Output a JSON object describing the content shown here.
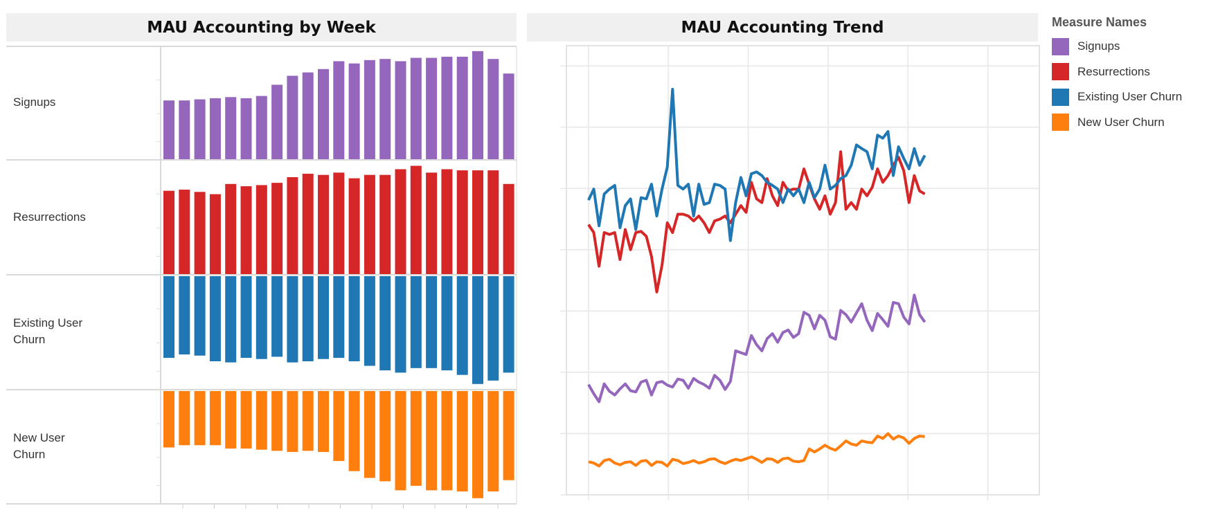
{
  "chart_data": [
    {
      "type": "bar",
      "title": "MAU Accounting by Week",
      "xlabel": "",
      "ylabel": "",
      "layout": "small multiples, one row per measure",
      "grid": false,
      "x_count": 23,
      "rows": [
        {
          "name": "Signups",
          "color": "#9467bd",
          "ylim": [
            0,
            100
          ],
          "values": [
            53,
            53,
            54,
            55,
            56,
            55,
            57,
            67,
            75,
            78,
            81,
            88,
            86,
            89,
            90,
            88,
            91,
            91,
            92,
            92,
            97,
            90,
            77
          ]
        },
        {
          "name": "Resurrections",
          "color": "#d62728",
          "ylim": [
            0,
            100
          ],
          "values": [
            74,
            75,
            73,
            71,
            80,
            78,
            79,
            81,
            86,
            89,
            88,
            90,
            85,
            88,
            88,
            93,
            96,
            90,
            93,
            92,
            92,
            92,
            80
          ]
        },
        {
          "name": "Existing User Churn",
          "label_lines": [
            "Existing User",
            "Churn"
          ],
          "color": "#1f77b4",
          "ylim": [
            -100,
            0
          ],
          "values": [
            -72,
            -69,
            -70,
            -75,
            -76,
            -72,
            -73,
            -71,
            -76,
            -75,
            -73,
            -72,
            -75,
            -79,
            -83,
            -85,
            -81,
            -81,
            -83,
            -87,
            -95,
            -92,
            -85
          ]
        },
        {
          "name": "New User Churn",
          "label_lines": [
            "New User",
            "Churn"
          ],
          "color": "#ff7f0e",
          "ylim": [
            -100,
            0
          ],
          "values": [
            -50,
            -48,
            -48,
            -48,
            -51,
            -51,
            -52,
            -53,
            -54,
            -53,
            -54,
            -62,
            -71,
            -77,
            -80,
            -88,
            -84,
            -88,
            -88,
            -89,
            -95,
            -89,
            -79
          ]
        }
      ]
    },
    {
      "type": "line",
      "title": "MAU Accounting Trend",
      "xlabel": "",
      "ylabel": "",
      "grid": true,
      "ylim": [
        0,
        7.33
      ],
      "xlim": [
        -4.2,
        85.8
      ],
      "legend": {
        "title": "Measure Names",
        "position": "right"
      },
      "series": [
        {
          "name": "Signups",
          "color": "#9467bd",
          "values": [
            1.8,
            1.65,
            1.52,
            1.81,
            1.69,
            1.63,
            1.73,
            1.81,
            1.7,
            1.68,
            1.84,
            1.87,
            1.63,
            1.83,
            1.85,
            1.79,
            1.76,
            1.89,
            1.87,
            1.74,
            1.9,
            1.84,
            1.8,
            1.74,
            1.95,
            1.87,
            1.72,
            1.85,
            2.35,
            2.32,
            2.29,
            2.6,
            2.45,
            2.35,
            2.55,
            2.63,
            2.49,
            2.65,
            2.69,
            2.57,
            2.63,
            2.98,
            2.93,
            2.71,
            2.93,
            2.85,
            2.58,
            2.54,
            3.01,
            2.94,
            2.82,
            2.97,
            3.12,
            2.85,
            2.68,
            2.96,
            2.86,
            2.75,
            3.14,
            3.12,
            2.9,
            2.79,
            3.26,
            2.94,
            2.82
          ]
        },
        {
          "name": "Resurrections",
          "color": "#d62728",
          "values": [
            4.41,
            4.28,
            3.73,
            4.28,
            4.25,
            4.28,
            3.84,
            4.33,
            4.0,
            4.28,
            4.3,
            4.22,
            3.89,
            3.31,
            3.75,
            4.44,
            4.28,
            4.58,
            4.58,
            4.55,
            4.47,
            4.55,
            4.44,
            4.28,
            4.47,
            4.5,
            4.55,
            4.44,
            4.58,
            4.72,
            4.61,
            5.1,
            4.83,
            4.77,
            5.16,
            4.88,
            4.72,
            5.1,
            4.96,
            4.99,
            4.99,
            5.32,
            5.07,
            4.83,
            4.66,
            4.88,
            4.58,
            4.77,
            5.6,
            4.66,
            4.77,
            4.66,
            4.99,
            4.88,
            5.02,
            5.32,
            5.1,
            5.21,
            5.38,
            5.51,
            5.29,
            4.77,
            5.21,
            4.96,
            4.91
          ]
        },
        {
          "name": "Existing User Churn",
          "color": "#1f77b4",
          "values": [
            4.81,
            4.99,
            4.39,
            4.91,
            4.99,
            5.05,
            4.36,
            4.72,
            4.83,
            4.33,
            4.85,
            4.83,
            5.07,
            4.55,
            4.99,
            5.35,
            6.62,
            5.05,
            4.99,
            5.07,
            4.55,
            5.07,
            4.74,
            4.77,
            5.07,
            5.05,
            4.99,
            4.15,
            4.77,
            5.18,
            4.88,
            5.24,
            5.27,
            5.21,
            5.1,
            5.05,
            4.99,
            4.77,
            4.99,
            4.88,
            4.99,
            4.77,
            5.1,
            4.85,
            4.99,
            5.38,
            4.99,
            5.05,
            5.16,
            5.21,
            5.38,
            5.71,
            5.65,
            5.6,
            5.32,
            5.87,
            5.82,
            5.93,
            5.21,
            5.68,
            5.49,
            5.32,
            5.65,
            5.38,
            5.54
          ]
        },
        {
          "name": "New User Churn",
          "color": "#ff7f0e",
          "values": [
            0.54,
            0.52,
            0.47,
            0.56,
            0.58,
            0.52,
            0.49,
            0.53,
            0.54,
            0.48,
            0.55,
            0.56,
            0.48,
            0.54,
            0.53,
            0.47,
            0.58,
            0.56,
            0.51,
            0.53,
            0.56,
            0.52,
            0.54,
            0.58,
            0.59,
            0.54,
            0.51,
            0.55,
            0.58,
            0.56,
            0.59,
            0.62,
            0.58,
            0.53,
            0.59,
            0.58,
            0.53,
            0.59,
            0.6,
            0.55,
            0.54,
            0.56,
            0.75,
            0.7,
            0.75,
            0.81,
            0.76,
            0.73,
            0.8,
            0.88,
            0.83,
            0.81,
            0.88,
            0.86,
            0.85,
            0.96,
            0.92,
            1.0,
            0.91,
            0.96,
            0.93,
            0.84,
            0.92,
            0.96,
            0.95
          ]
        }
      ]
    }
  ]
}
